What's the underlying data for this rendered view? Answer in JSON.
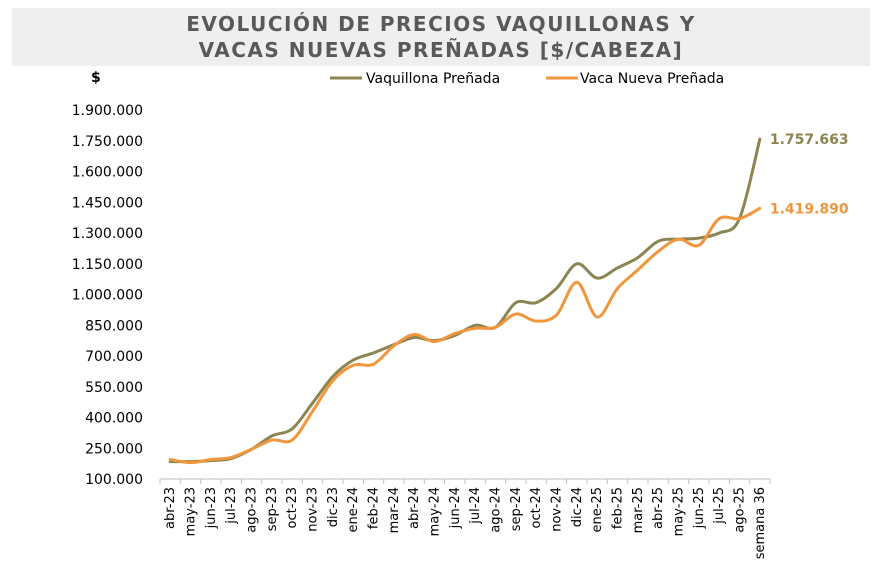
{
  "chart_data": {
    "type": "line",
    "title_line1": "EVOLUCIÓN DE PRECIOS VAQUILLONAS Y",
    "title_line2": "VACAS NUEVAS PREÑADAS [$/CABEZA]",
    "ylabel": "$",
    "ylim": [
      100000,
      1900000
    ],
    "yticks": [
      100000,
      250000,
      400000,
      550000,
      700000,
      850000,
      1000000,
      1150000,
      1300000,
      1450000,
      1600000,
      1750000,
      1900000
    ],
    "ytick_labels": [
      "100.000",
      "250.000",
      "400.000",
      "550.000",
      "700.000",
      "850.000",
      "1.000.000",
      "1.150.000",
      "1.300.000",
      "1.450.000",
      "1.600.000",
      "1.750.000",
      "1.900.000"
    ],
    "categories": [
      "abr-23",
      "may-23",
      "jun-23",
      "jul-23",
      "ago-23",
      "sep-23",
      "oct-23",
      "nov-23",
      "dic-23",
      "ene-24",
      "feb-24",
      "mar-24",
      "abr-24",
      "may-24",
      "jun-24",
      "jul-24",
      "ago-24",
      "sep-24",
      "oct-24",
      "nov-24",
      "dic-24",
      "ene-25",
      "feb-25",
      "mar-25",
      "abr-25",
      "may-25",
      "jun-25",
      "jul-25",
      "ago-25",
      "semana 36"
    ],
    "grid": false,
    "legend_position": "top",
    "series": [
      {
        "name": "Vaquillona Preñada",
        "color": "#8c8452",
        "values": [
          185000,
          185000,
          190000,
          200000,
          245000,
          310000,
          345000,
          470000,
          600000,
          680000,
          715000,
          755000,
          790000,
          775000,
          800000,
          850000,
          840000,
          960000,
          960000,
          1030000,
          1150000,
          1080000,
          1130000,
          1180000,
          1260000,
          1270000,
          1275000,
          1300000,
          1370000,
          1757663
        ],
        "end_label": "1.757.663"
      },
      {
        "name": "Vaca Nueva Preñada",
        "color": "#f0963c",
        "values": [
          195000,
          180000,
          195000,
          205000,
          245000,
          290000,
          290000,
          430000,
          580000,
          655000,
          660000,
          750000,
          805000,
          770000,
          810000,
          835000,
          840000,
          905000,
          870000,
          900000,
          1060000,
          890000,
          1030000,
          1120000,
          1210000,
          1270000,
          1240000,
          1370000,
          1370000,
          1419890
        ],
        "end_label": "1.419.890"
      }
    ]
  }
}
